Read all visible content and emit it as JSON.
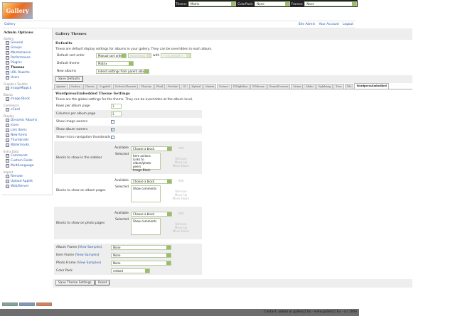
{
  "topbar": {
    "theme_label": "Theme:",
    "theme_value": "Matrix",
    "colorpack_label": "ColorPack:",
    "colorpack_value": "None",
    "frames_label": "Frames:",
    "frames_value": "None"
  },
  "logo_text": "Gallery",
  "nav": {
    "breadcrumb": "Gallery",
    "links": [
      "Site Admin",
      "Your Account",
      "Logout"
    ]
  },
  "sidebar": {
    "title": "Admin Options",
    "groups": [
      {
        "label": "Gallery",
        "items": [
          "General",
          "Groups",
          "Maintenance",
          "Performance",
          "Plugins",
          "Themes",
          "URL Rewrite",
          "Users"
        ]
      },
      {
        "label": "Graphics Toolkits",
        "items": [
          "ImageMagick"
        ]
      },
      {
        "label": "Blocks",
        "items": [
          "Image Block"
        ]
      },
      {
        "label": "Commerce",
        "items": [
          "eCard"
        ]
      },
      {
        "label": "Display",
        "items": [
          "Dynamic Albums",
          "Icons",
          "Link Items",
          "New Items",
          "Thumbnails",
          "Watermarks"
        ]
      },
      {
        "label": "Extra Data",
        "items": [
          "Comments",
          "Custom Fields",
          "MultiLanguage"
        ]
      },
      {
        "label": "Import",
        "items": [
          "Remote",
          "Upload Applet",
          "Web/Server"
        ]
      }
    ],
    "current": "Themes"
  },
  "page": {
    "title": "Gallery Themes",
    "defaults_heading": "Defaults",
    "defaults_desc": "These are default display settings for albums in your gallery. They can be overridden in each album.",
    "sort_label": "Default sort order",
    "sort_value": "Manual sort order",
    "sort_dir": "Ascending",
    "with_label": "with",
    "presort": "« no presort »",
    "theme_label": "Default theme",
    "theme_value": "Matrix",
    "new_label": "New albums",
    "new_value": "Inherit settings from parent album",
    "save_defaults": "Save Defaults"
  },
  "tabs": [
    "Ajaxian",
    "Carbon",
    "Classic",
    "Copyleft",
    "EclecticThreads",
    "Floatrix",
    "Fluid",
    "ForSale",
    "G1",
    "Hybrid",
    "Matrix",
    "Nature",
    "PGlightbox",
    "PGtheme",
    "RoundCorners",
    "Siriux",
    "Slider",
    "Splabang",
    "Tree",
    "Tile",
    "WordpressEmbedded"
  ],
  "active_tab": "WordpressEmbedded",
  "settings": {
    "title": "WordpressEmbedded Theme Settings",
    "desc": "These are the global settings for the theme. They can be overridden at the album level.",
    "rows_label": "Rows per album page",
    "rows_value": "3",
    "cols_label": "Columns per album page",
    "cols_value": "3",
    "owners_label": "Show image owners",
    "owners_checked": false,
    "album_owners_label": "Show album owners",
    "album_owners_checked": true,
    "micro_label": "Show micro navigation thumbnails",
    "micro_checked": false,
    "available_label": "Available",
    "selected_label": "Selected",
    "choose": "Choose a block",
    "add": "Add",
    "remove": "Remove",
    "up": "Move Up",
    "down": "Move Down",
    "sidebar_label": "Blocks to show in the sidebar",
    "sidebar_blocks": "Item actions\nLinks to album/photo peers\nImage Block",
    "album_label": "Blocks to show on album pages",
    "album_blocks": "Show comments",
    "photo_label": "Blocks to show on photo pages",
    "photo_blocks": "Show comments",
    "album_frame_label": "Album Frame",
    "item_frame_label": "Item Frame",
    "photo_frame_label": "Photo Frame",
    "view_samples": "View Samples",
    "album_frame": "None",
    "item_frame": "None",
    "photo_frame": "None",
    "colorpack_label": "Color Pack",
    "colorpack": "embed",
    "save": "Save Theme Settings",
    "reset": "Reset"
  },
  "footer": "Contact: admin at gallery2.hu - www.gallery2.hu - (c) 2006"
}
